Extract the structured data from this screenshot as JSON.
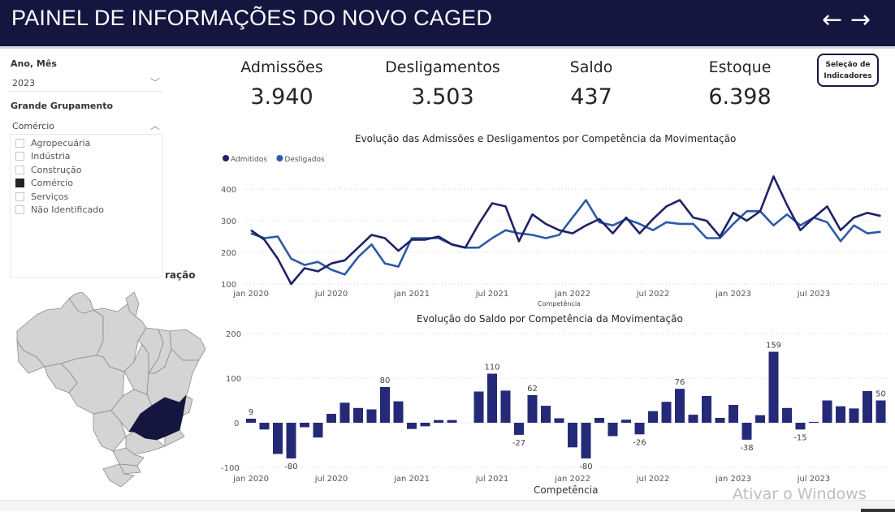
{
  "header": {
    "title": "PAINEL DE INFORMAÇÕES DO NOVO CAGED",
    "back_icon": "←",
    "forward_icon": "→"
  },
  "filters": {
    "period_label": "Ano, Mês",
    "period_value": "2023",
    "group_label": "Grande Grupamento",
    "group_value": "Comércio",
    "group_options": [
      {
        "label": "Agropecuária",
        "checked": false
      },
      {
        "label": "Indústria",
        "checked": false
      },
      {
        "label": "Construção",
        "checked": false
      },
      {
        "label": "Comércio",
        "checked": true
      },
      {
        "label": "Serviços",
        "checked": false
      },
      {
        "label": "Não Identificado",
        "checked": false
      }
    ],
    "chevron_down": "﹀",
    "chevron_up": "︿"
  },
  "map": {
    "partial_title": "ração",
    "highlighted_state": "Minas Gerais",
    "highlight_color": "#14163f",
    "base_color": "#d4d4d4"
  },
  "kpis": [
    {
      "label": "Admissões",
      "value": "3.940"
    },
    {
      "label": "Desligamentos",
      "value": "3.503"
    },
    {
      "label": "Saldo",
      "value": "437"
    },
    {
      "label": "Estoque",
      "value": "6.398"
    }
  ],
  "selection_button": {
    "line1": "Seleção de",
    "line2": "Indicadores"
  },
  "colors": {
    "header_bg": "#14163f",
    "admitidos": "#1f2266",
    "desligados": "#2b5aa6",
    "bars": "#252a78"
  },
  "chart_data": [
    {
      "type": "line",
      "title": "Evolução das Admissões e Desligamentos por Competência da Movimentação",
      "xlabel": "Competência",
      "ylabel": "",
      "ylim": [
        100,
        450
      ],
      "yticks": [
        100,
        200,
        300,
        400
      ],
      "xtick_labels": [
        "jan 2020",
        "jul 2020",
        "jan 2021",
        "jul 2021",
        "jan 2022",
        "jul 2022",
        "jan 2023",
        "jul 2023"
      ],
      "xtick_index": [
        0,
        6,
        12,
        18,
        24,
        30,
        36,
        42
      ],
      "grid": true,
      "legend_position": "top-left",
      "x": [
        "2020-01",
        "2020-02",
        "2020-03",
        "2020-04",
        "2020-05",
        "2020-06",
        "2020-07",
        "2020-08",
        "2020-09",
        "2020-10",
        "2020-11",
        "2020-12",
        "2021-01",
        "2021-02",
        "2021-03",
        "2021-04",
        "2021-05",
        "2021-06",
        "2021-07",
        "2021-08",
        "2021-09",
        "2021-10",
        "2021-11",
        "2021-12",
        "2022-01",
        "2022-02",
        "2022-03",
        "2022-04",
        "2022-05",
        "2022-06",
        "2022-07",
        "2022-08",
        "2022-09",
        "2022-10",
        "2022-11",
        "2022-12",
        "2023-01",
        "2023-02",
        "2023-03",
        "2023-04",
        "2023-05",
        "2023-06",
        "2023-07",
        "2023-08",
        "2023-09",
        "2023-10",
        "2023-11",
        "2023-12"
      ],
      "series": [
        {
          "name": "Admitidos",
          "values": [
            270,
            240,
            180,
            100,
            150,
            140,
            165,
            175,
            215,
            255,
            245,
            205,
            240,
            240,
            250,
            225,
            215,
            290,
            355,
            345,
            235,
            320,
            290,
            270,
            260,
            285,
            305,
            260,
            310,
            260,
            305,
            345,
            365,
            310,
            300,
            250,
            325,
            300,
            330,
            440,
            350,
            270,
            310,
            345,
            270,
            310,
            325,
            315
          ]
        },
        {
          "name": "Desligados",
          "values": [
            260,
            245,
            250,
            180,
            160,
            170,
            145,
            130,
            185,
            225,
            165,
            155,
            245,
            245,
            245,
            225,
            215,
            215,
            245,
            270,
            260,
            255,
            245,
            255,
            310,
            365,
            295,
            285,
            305,
            290,
            270,
            295,
            290,
            290,
            245,
            245,
            290,
            330,
            330,
            285,
            320,
            285,
            310,
            295,
            235,
            285,
            260,
            265
          ]
        }
      ]
    },
    {
      "type": "bar",
      "title": "Evolução do Saldo por Competência da Movimentação",
      "xlabel": "Competência",
      "ylabel": "",
      "ylim": [
        -100,
        200
      ],
      "yticks": [
        -100,
        0,
        100,
        200
      ],
      "xtick_labels": [
        "jan 2020",
        "jul 2020",
        "jan 2021",
        "jul 2021",
        "jan 2022",
        "jul 2022",
        "jan 2023",
        "jul 2023"
      ],
      "xtick_index": [
        0,
        6,
        12,
        18,
        24,
        30,
        36,
        42
      ],
      "grid": true,
      "values": [
        9,
        -15,
        -70,
        -80,
        -10,
        -33,
        20,
        45,
        33,
        30,
        80,
        48,
        -14,
        -8,
        6,
        6,
        0,
        70,
        110,
        72,
        -27,
        62,
        38,
        10,
        -55,
        -80,
        11,
        -30,
        7,
        -26,
        26,
        47,
        76,
        18,
        60,
        11,
        40,
        -38,
        17,
        159,
        33,
        -15,
        2,
        50,
        37,
        32,
        71,
        50
      ],
      "data_labels": [
        {
          "index": 0,
          "text": "9"
        },
        {
          "index": 3,
          "text": "-80"
        },
        {
          "index": 10,
          "text": "80"
        },
        {
          "index": 18,
          "text": "110"
        },
        {
          "index": 20,
          "text": "-27"
        },
        {
          "index": 21,
          "text": "62"
        },
        {
          "index": 25,
          "text": "-80"
        },
        {
          "index": 29,
          "text": "-26"
        },
        {
          "index": 32,
          "text": "76"
        },
        {
          "index": 37,
          "text": "-38"
        },
        {
          "index": 39,
          "text": "159"
        },
        {
          "index": 41,
          "text": "-15"
        },
        {
          "index": 47,
          "text": "50"
        }
      ]
    }
  ],
  "watermark": "Ativar o Windows"
}
